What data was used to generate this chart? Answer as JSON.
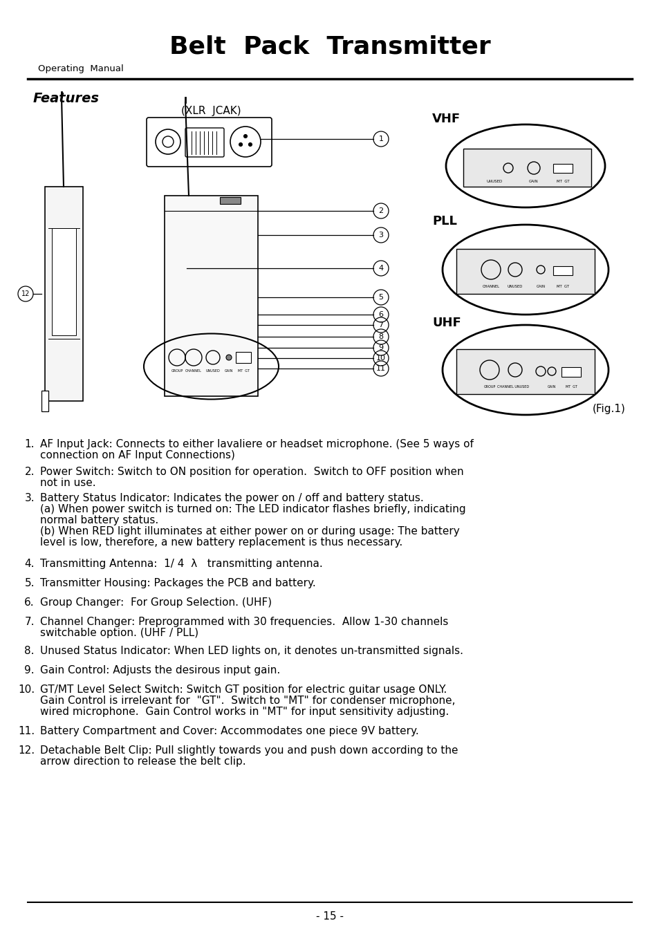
{
  "title": "Belt  Pack  Transmitter",
  "subtitle": "Operating  Manual",
  "section": "Features",
  "xlr_label": "(XLR  JCAK)",
  "fig_label": "(Fig.1)",
  "page_num": "- 15 -",
  "vhf_label": "VHF",
  "pll_label": "PLL",
  "uhf_label": "UHF",
  "items": [
    "AF Input Jack: Connects to either lavaliere or headset microphone. (See 5 ways of\n    connection on AF Input Connections)",
    "Power Switch: Switch to ON position for operation.  Switch to OFF position when\n    not in use.",
    "Battery Status Indicator: Indicates the power on / off and battery status.\n    (a) When power switch is turned on: The LED indicator flashes briefly, indicating\n    normal battery status.\n    (b) When RED light illuminates at either power on or during usage: The battery\n    level is low, therefore, a new battery replacement is thus necessary.",
    "Transmitting Antenna:  1/ 4  λ   transmitting antenna.",
    "Transmitter Housing: Packages the PCB and battery.",
    "Group Changer:  For Group Selection. (UHF)",
    "Channel Changer: Preprogrammed with 30 frequencies.  Allow 1-30 channels\n    switchable option. (UHF / PLL)",
    "Unused Status Indicator: When LED lights on, it denotes un-transmitted signals.",
    "Gain Control: Adjusts the desirous input gain.",
    "GT/MT Level Select Switch: Switch GT position for electric guitar usage ONLY.\n    Gain Control is irrelevant for  \"GT\".  Switch to \"MT\" for condenser microphone,\n    wired microphone.  Gain Control works in \"MT\" for input sensitivity adjusting.",
    "Battery Compartment and Cover: Accommodates one piece 9V battery.",
    "Detachable Belt Clip: Pull slightly towards you and push down according to the\n    arrow direction to release the belt clip."
  ],
  "bg_color": "#ffffff",
  "text_color": "#000000",
  "line_color": "#000000"
}
